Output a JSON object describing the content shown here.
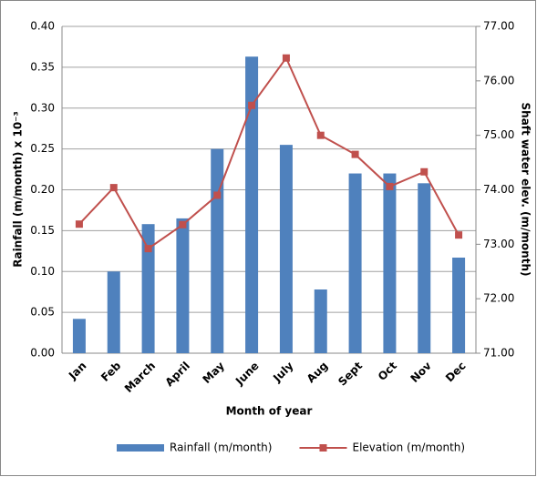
{
  "chart_data": {
    "type": "combo",
    "x_label": "Month of year",
    "y_label": "Rainfall (m/month) x 10⁻³",
    "y2_label": "Shaft water elev. (m/month)",
    "categories": [
      "Jan",
      "Feb",
      "March",
      "April",
      "May",
      "June",
      "July",
      "Aug",
      "Sept",
      "Oct",
      "Nov",
      "Dec"
    ],
    "series": [
      {
        "name": "Rainfall (m/month)",
        "type": "bar",
        "color": "#4f81bd",
        "values": [
          0.042,
          0.1,
          0.158,
          0.165,
          0.25,
          0.363,
          0.255,
          0.078,
          0.22,
          0.22,
          0.208,
          0.117
        ]
      },
      {
        "name": "Elevation (m/month)",
        "type": "line",
        "axis": "y2",
        "color": "#c0504d",
        "values": [
          73.37,
          74.04,
          72.92,
          73.36,
          73.9,
          75.55,
          76.42,
          75.0,
          74.65,
          74.06,
          74.33,
          73.17
        ]
      }
    ],
    "ylim": [
      0,
      0.4
    ],
    "yticks": [
      {
        "value": 0,
        "label": "0.00"
      },
      {
        "value": 0.05,
        "label": "0.05"
      },
      {
        "value": 0.1,
        "label": "0.10"
      },
      {
        "value": 0.15,
        "label": "0.15"
      },
      {
        "value": 0.2,
        "label": "0.20"
      },
      {
        "value": 0.25,
        "label": "0.25"
      },
      {
        "value": 0.3,
        "label": "0.30"
      },
      {
        "value": 0.35,
        "label": "0.35"
      },
      {
        "value": 0.4,
        "label": "0.40"
      }
    ],
    "y2lim": [
      71,
      77
    ],
    "y2ticks": [
      {
        "value": 71,
        "label": "71.00"
      },
      {
        "value": 72,
        "label": "72.00"
      },
      {
        "value": 73,
        "label": "73.00"
      },
      {
        "value": 74,
        "label": "74.00"
      },
      {
        "value": 75,
        "label": "75.00"
      },
      {
        "value": 76,
        "label": "76.00"
      },
      {
        "value": 77,
        "label": "77.00"
      }
    ],
    "grid": true,
    "legend": "bottom"
  }
}
